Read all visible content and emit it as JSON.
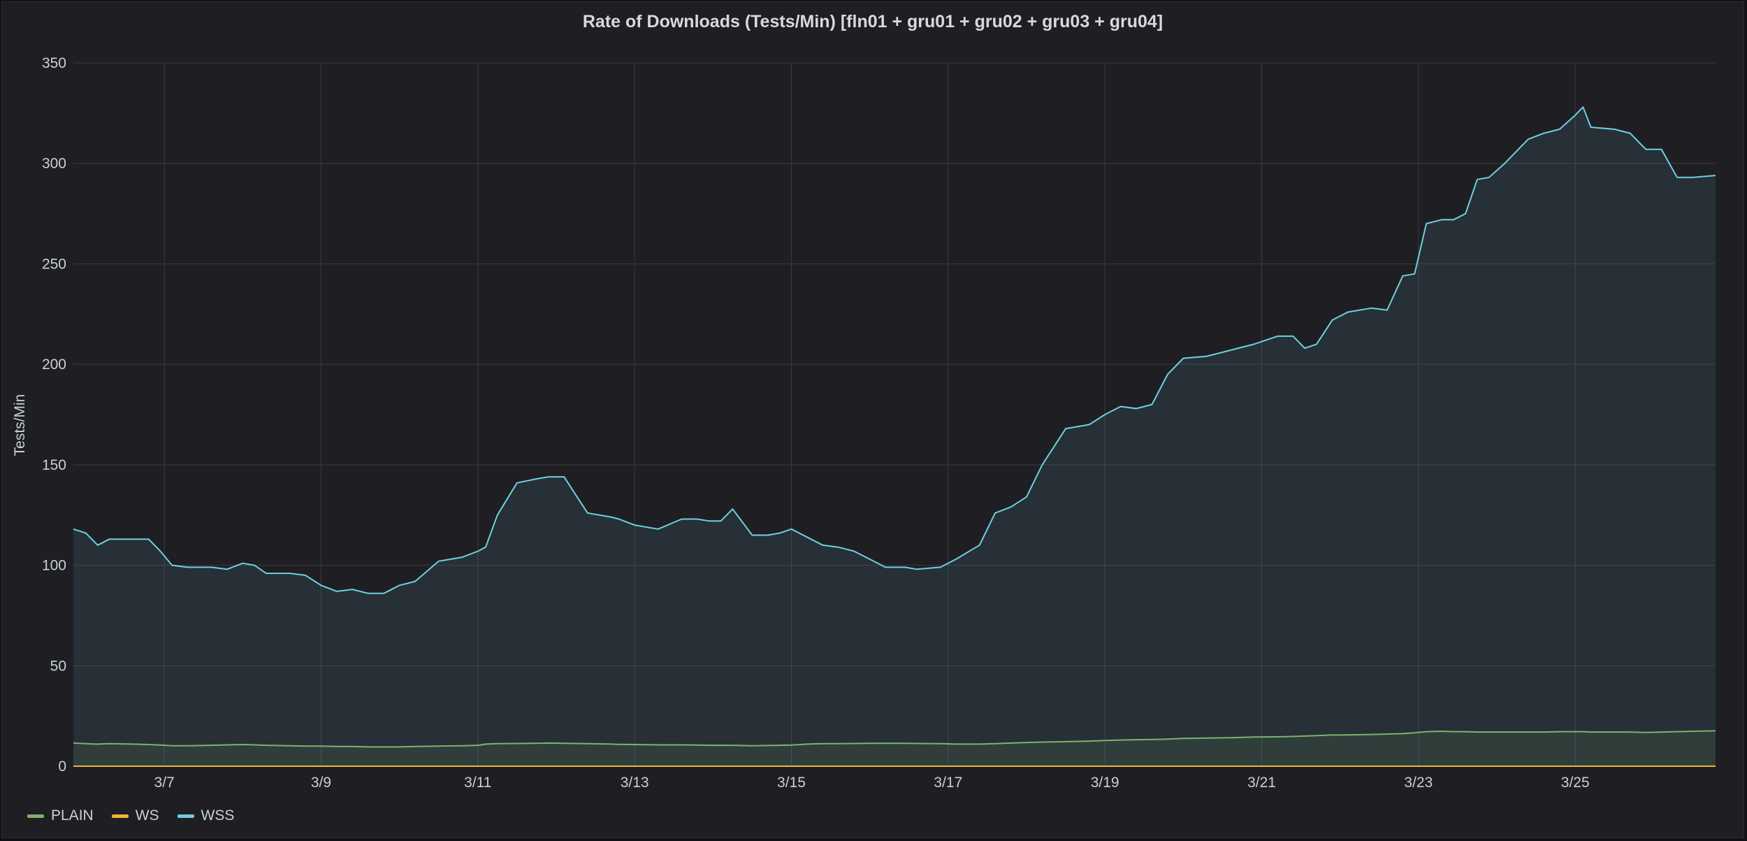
{
  "panel": {
    "title": "Rate of Downloads (Tests/Min) [fln01 + gru01 + gru02 + gru03 + gru04]"
  },
  "colors": {
    "background": "#1f1f23",
    "grid": "#3a3b40",
    "text": "#c7d0d9",
    "PLAIN": "#7eb26d",
    "WS": "#eab839",
    "WSS": "#6ed0e0"
  },
  "legend": [
    {
      "name": "PLAIN",
      "icon": "line-swatch"
    },
    {
      "name": "WS",
      "icon": "line-swatch"
    },
    {
      "name": "WSS",
      "icon": "line-swatch"
    }
  ],
  "chart_data": {
    "type": "area",
    "title": "Rate of Downloads (Tests/Min) [fln01 + gru01 + gru02 + gru03 + gru04]",
    "xlabel": "",
    "ylabel": "Tests/Min",
    "x_tick_labels": [
      "3/7",
      "3/9",
      "3/11",
      "3/13",
      "3/15",
      "3/17",
      "3/19",
      "3/21",
      "3/23",
      "3/25"
    ],
    "x_tick_days": [
      7,
      9,
      11,
      13,
      15,
      17,
      19,
      21,
      23,
      25
    ],
    "xlim": [
      5.84,
      26.79
    ],
    "y_ticks": [
      0,
      50,
      100,
      150,
      200,
      250,
      300,
      350
    ],
    "ylim": [
      0,
      350
    ],
    "grid": true,
    "legend_position": "bottom-left",
    "x": [
      5.84,
      6.0,
      6.15,
      6.3,
      6.6,
      6.8,
      6.95,
      7.1,
      7.3,
      7.6,
      7.8,
      8.0,
      8.15,
      8.3,
      8.6,
      8.8,
      9.0,
      9.2,
      9.4,
      9.6,
      9.8,
      10.0,
      10.2,
      10.5,
      10.8,
      11.0,
      11.1,
      11.25,
      11.5,
      11.75,
      11.9,
      12.1,
      12.4,
      12.7,
      12.8,
      13.0,
      13.3,
      13.6,
      13.8,
      13.95,
      14.1,
      14.25,
      14.5,
      14.7,
      14.85,
      15.0,
      15.2,
      15.4,
      15.6,
      15.8,
      16.0,
      16.2,
      16.45,
      16.6,
      16.9,
      17.1,
      17.4,
      17.6,
      17.8,
      18.0,
      18.2,
      18.5,
      18.8,
      19.0,
      19.2,
      19.4,
      19.6,
      19.8,
      20.0,
      20.3,
      20.6,
      20.9,
      21.2,
      21.4,
      21.55,
      21.7,
      21.9,
      22.1,
      22.4,
      22.6,
      22.8,
      22.95,
      23.1,
      23.3,
      23.45,
      23.6,
      23.75,
      23.9,
      24.1,
      24.4,
      24.6,
      24.8,
      25.0,
      25.1,
      25.2,
      25.5,
      25.7,
      25.9,
      26.1,
      26.3,
      26.5,
      26.79
    ],
    "series": [
      {
        "name": "WSS",
        "values": [
          118,
          116,
          110,
          113,
          113,
          113,
          107,
          100,
          99,
          99,
          98,
          101,
          100,
          96,
          96,
          95,
          90,
          87,
          88,
          86,
          86,
          90,
          92,
          102,
          104,
          107,
          109,
          125,
          141,
          143,
          144,
          144,
          126,
          124,
          123,
          120,
          118,
          123,
          123,
          122,
          122,
          128,
          115,
          115,
          116,
          118,
          114,
          110,
          109,
          107,
          103,
          99,
          99,
          98,
          99,
          103,
          110,
          126,
          129,
          134,
          150,
          168,
          170,
          175,
          179,
          178,
          180,
          195,
          203,
          204,
          207,
          210,
          214,
          214,
          208,
          210,
          222,
          226,
          228,
          227,
          244,
          245,
          270,
          272,
          272,
          275,
          292,
          293,
          300,
          312,
          315,
          317,
          324,
          328,
          318,
          317,
          315,
          307,
          307,
          293,
          293,
          294
        ]
      },
      {
        "name": "PLAIN",
        "values": [
          11.5,
          11.2,
          11.0,
          11.2,
          11.0,
          10.8,
          10.5,
          10.2,
          10.2,
          10.4,
          10.6,
          10.8,
          10.6,
          10.4,
          10.2,
          10.0,
          10.0,
          9.8,
          9.8,
          9.6,
          9.6,
          9.6,
          9.8,
          10.0,
          10.2,
          10.4,
          11.0,
          11.2,
          11.3,
          11.4,
          11.5,
          11.4,
          11.2,
          11.0,
          10.9,
          10.8,
          10.6,
          10.6,
          10.5,
          10.4,
          10.4,
          10.4,
          10.2,
          10.3,
          10.4,
          10.5,
          11.0,
          11.2,
          11.2,
          11.3,
          11.4,
          11.4,
          11.4,
          11.3,
          11.2,
          11.0,
          11.0,
          11.2,
          11.5,
          11.8,
          12.0,
          12.2,
          12.5,
          12.8,
          13.0,
          13.2,
          13.3,
          13.5,
          13.8,
          14.0,
          14.2,
          14.5,
          14.6,
          14.8,
          15.0,
          15.2,
          15.5,
          15.6,
          15.8,
          16.0,
          16.2,
          16.6,
          17.2,
          17.4,
          17.2,
          17.2,
          17.0,
          17.0,
          17.0,
          17.0,
          17.0,
          17.2,
          17.2,
          17.2,
          17.0,
          17.0,
          17.0,
          16.8,
          17.0,
          17.2,
          17.4,
          17.6
        ]
      },
      {
        "name": "WS",
        "values": [
          0,
          0,
          0,
          0,
          0,
          0,
          0,
          0,
          0,
          0,
          0,
          0,
          0,
          0,
          0,
          0,
          0,
          0,
          0,
          0,
          0,
          0,
          0,
          0,
          0,
          0,
          0,
          0,
          0,
          0,
          0,
          0,
          0,
          0,
          0,
          0,
          0,
          0,
          0,
          0,
          0,
          0,
          0,
          0,
          0,
          0,
          0,
          0,
          0,
          0,
          0,
          0,
          0,
          0,
          0,
          0,
          0,
          0,
          0,
          0,
          0,
          0,
          0,
          0,
          0,
          0,
          0,
          0,
          0,
          0,
          0,
          0,
          0,
          0,
          0,
          0,
          0,
          0,
          0,
          0,
          0,
          0,
          0,
          0,
          0,
          0,
          0,
          0,
          0,
          0,
          0,
          0,
          0,
          0,
          0,
          0,
          0,
          0,
          0,
          0,
          0,
          0
        ]
      }
    ]
  }
}
